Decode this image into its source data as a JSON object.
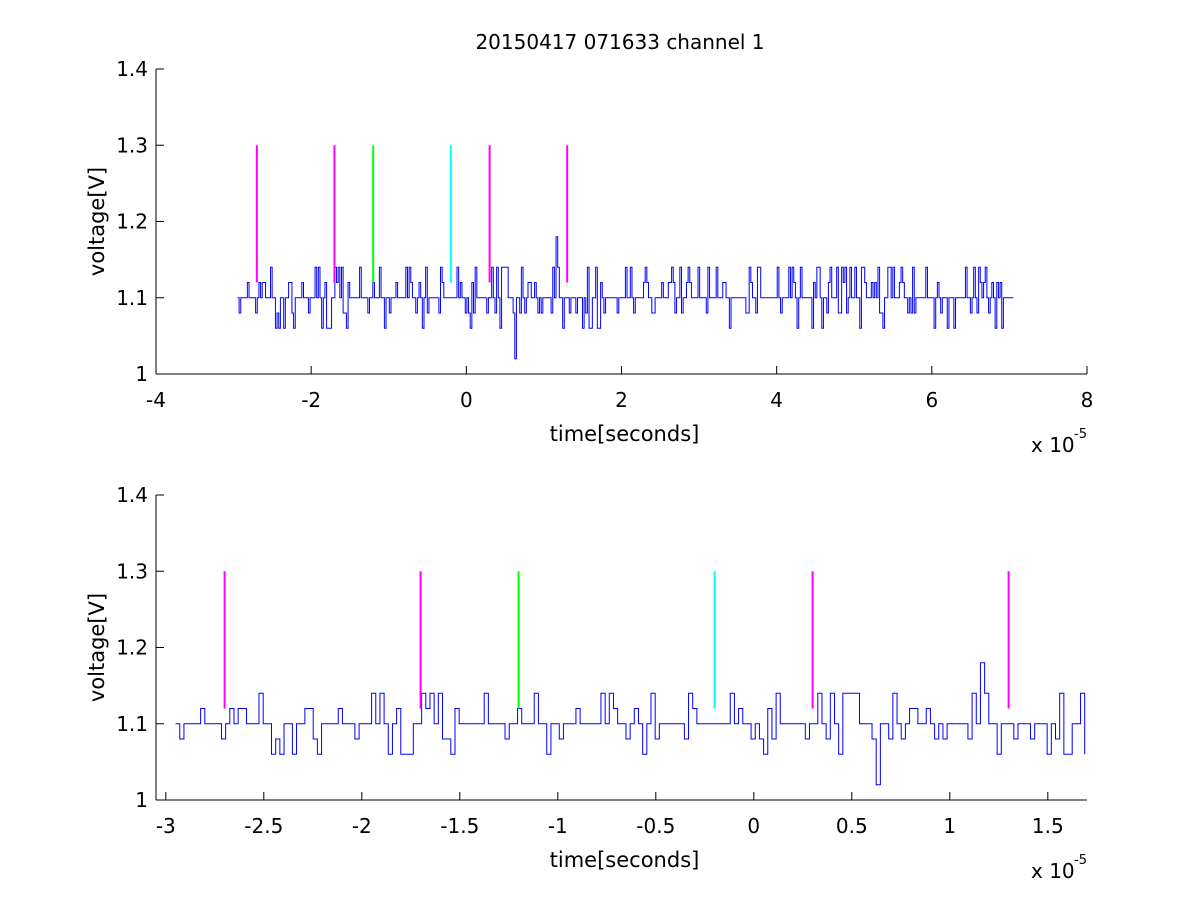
{
  "figure_title": "20150417 071633 channel 1",
  "colors": {
    "signal": "#0000ff",
    "magenta": "#ff00ff",
    "green": "#00ff00",
    "cyan": "#00ffff",
    "axes": "#000000"
  },
  "chart_data": [
    {
      "type": "line",
      "title": "20150417 071633 channel 1",
      "xlabel": "time[seconds]",
      "ylabel": "voltage[V]",
      "x_scale_label": {
        "base": "x 10",
        "exponent": "-5"
      },
      "xlim": [
        -4,
        8
      ],
      "ylim": [
        1,
        1.4
      ],
      "xticks": [
        -4,
        -2,
        0,
        2,
        4,
        6,
        8
      ],
      "xtick_labels": [
        "-4",
        "-2",
        "0",
        "2",
        "4",
        "6",
        "8"
      ],
      "yticks": [
        1,
        1.1,
        1.2,
        1.3,
        1.4
      ],
      "ytick_labels": [
        "1",
        "1.1",
        "1.2",
        "1.3",
        "1.4"
      ],
      "grid": false,
      "series": [
        {
          "color": "#0000ff",
          "x_range": [
            -2.95,
            7.05
          ],
          "levels": [
            1.06,
            1.08,
            1.1,
            1.12,
            1.14
          ],
          "baseline": 1.1,
          "outliers": [
            {
              "x": 0.62,
              "y": 1.02
            },
            {
              "x": 1.16,
              "y": 1.18
            }
          ]
        }
      ],
      "markers": [
        {
          "x": -2.7,
          "y_bottom": 1.12,
          "y_top": 1.3,
          "color": "magenta"
        },
        {
          "x": -1.7,
          "y_bottom": 1.12,
          "y_top": 1.3,
          "color": "magenta"
        },
        {
          "x": -1.2,
          "y_bottom": 1.12,
          "y_top": 1.3,
          "color": "green"
        },
        {
          "x": -0.2,
          "y_bottom": 1.12,
          "y_top": 1.3,
          "color": "cyan"
        },
        {
          "x": 0.3,
          "y_bottom": 1.12,
          "y_top": 1.3,
          "color": "magenta"
        },
        {
          "x": 1.3,
          "y_bottom": 1.12,
          "y_top": 1.3,
          "color": "magenta"
        }
      ]
    },
    {
      "type": "line",
      "title": "",
      "xlabel": "time[seconds]",
      "ylabel": "voltage[V]",
      "x_scale_label": {
        "base": "x 10",
        "exponent": "-5"
      },
      "xlim": [
        -3.05,
        1.7
      ],
      "ylim": [
        1,
        1.4
      ],
      "xticks": [
        -3,
        -2.5,
        -2,
        -1.5,
        -1,
        -0.5,
        0,
        0.5,
        1,
        1.5
      ],
      "xtick_labels": [
        "-3",
        "-2.5",
        "-2",
        "-1.5",
        "-1",
        "-0.5",
        "0",
        "0.5",
        "1",
        "1.5"
      ],
      "yticks": [
        1,
        1.1,
        1.2,
        1.3,
        1.4
      ],
      "ytick_labels": [
        "1",
        "1.1",
        "1.2",
        "1.3",
        "1.4"
      ],
      "grid": false,
      "series": [
        {
          "color": "#0000ff",
          "x_range": [
            -2.95,
            1.7
          ],
          "levels": [
            1.06,
            1.08,
            1.1,
            1.12,
            1.14
          ],
          "baseline": 1.1,
          "outliers": [
            {
              "x": 0.62,
              "y": 1.02
            },
            {
              "x": 1.16,
              "y": 1.18
            }
          ]
        }
      ],
      "markers": [
        {
          "x": -2.7,
          "y_bottom": 1.12,
          "y_top": 1.3,
          "color": "magenta"
        },
        {
          "x": -1.7,
          "y_bottom": 1.12,
          "y_top": 1.3,
          "color": "magenta"
        },
        {
          "x": -1.2,
          "y_bottom": 1.12,
          "y_top": 1.3,
          "color": "green"
        },
        {
          "x": -0.2,
          "y_bottom": 1.12,
          "y_top": 1.3,
          "color": "cyan"
        },
        {
          "x": 0.3,
          "y_bottom": 1.12,
          "y_top": 1.3,
          "color": "magenta"
        },
        {
          "x": 1.3,
          "y_bottom": 1.12,
          "y_top": 1.3,
          "color": "magenta"
        }
      ]
    }
  ]
}
